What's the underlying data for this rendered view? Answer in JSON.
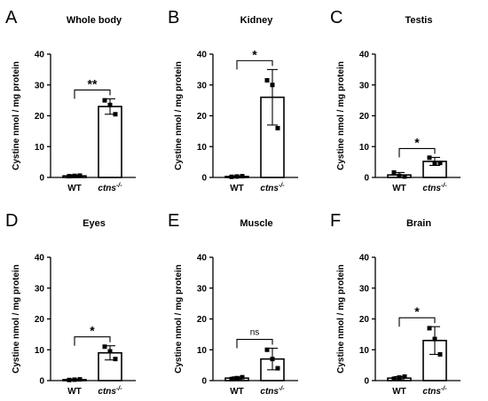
{
  "chart_data": [
    {
      "type": "bar",
      "panel": "A",
      "title": "Whole body",
      "ylabel": "Cystine nmol / mg protein",
      "ylim": [
        0,
        40
      ],
      "yticks": [
        "0",
        "10",
        "20",
        "30",
        "40"
      ],
      "categories": [
        "WT",
        "ctns"
      ],
      "category_superscripts": [
        "",
        "-/-"
      ],
      "values": [
        0.5,
        23.0
      ],
      "errors": [
        0.3,
        2.5
      ],
      "points": [
        [
          0.4,
          0.5,
          0.6
        ],
        [
          25.0,
          23.5,
          20.5
        ]
      ],
      "significance": "**"
    },
    {
      "type": "bar",
      "panel": "B",
      "title": "Kidney",
      "ylabel": "Cystine nmol / mg protein",
      "ylim": [
        0,
        40
      ],
      "yticks": [
        "0",
        "10",
        "20",
        "30",
        "40"
      ],
      "categories": [
        "WT",
        "ctns"
      ],
      "category_superscripts": [
        "",
        "-/-"
      ],
      "values": [
        0.3,
        26.0
      ],
      "errors": [
        0.2,
        9.0
      ],
      "points": [
        [
          0.2,
          0.3,
          0.4
        ],
        [
          31.5,
          30.0,
          16.0
        ]
      ],
      "significance": "*"
    },
    {
      "type": "bar",
      "panel": "C",
      "title": "Testis",
      "ylabel": "Cystine nmol / mg protein",
      "ylim": [
        0,
        40
      ],
      "yticks": [
        "0",
        "10",
        "20",
        "30",
        "40"
      ],
      "categories": [
        "WT",
        "ctns"
      ],
      "category_superscripts": [
        "",
        "-/-"
      ],
      "values": [
        0.8,
        5.2
      ],
      "errors": [
        0.8,
        1.3
      ],
      "points": [
        [
          1.6,
          0.5,
          0.3
        ],
        [
          6.4,
          4.6,
          4.7
        ]
      ],
      "significance": "*"
    },
    {
      "type": "bar",
      "panel": "D",
      "title": "Eyes",
      "ylabel": "Cystine nmol / mg protein",
      "ylim": [
        0,
        40
      ],
      "yticks": [
        "0",
        "10",
        "20",
        "30",
        "40"
      ],
      "categories": [
        "WT",
        "ctns"
      ],
      "category_superscripts": [
        "",
        "-/-"
      ],
      "values": [
        0.3,
        9.0
      ],
      "errors": [
        0.2,
        2.3
      ],
      "points": [
        [
          0.2,
          0.3,
          0.4
        ],
        [
          11.0,
          9.5,
          7.0
        ]
      ],
      "significance": "*"
    },
    {
      "type": "bar",
      "panel": "E",
      "title": "Muscle",
      "ylabel": "Cystine nmol / mg protein",
      "ylim": [
        0,
        40
      ],
      "yticks": [
        "0",
        "10",
        "20",
        "30",
        "40"
      ],
      "categories": [
        "WT",
        "ctns"
      ],
      "category_superscripts": [
        "",
        "-/-"
      ],
      "values": [
        0.8,
        7.0
      ],
      "errors": [
        0.4,
        3.5
      ],
      "points": [
        [
          0.5,
          0.8,
          1.1
        ],
        [
          10.0,
          7.0,
          4.0
        ]
      ],
      "significance": "ns"
    },
    {
      "type": "bar",
      "panel": "F",
      "title": "Brain",
      "ylabel": "Cystine nmol / mg protein",
      "ylim": [
        0,
        40
      ],
      "yticks": [
        "0",
        "10",
        "20",
        "30",
        "40"
      ],
      "categories": [
        "WT",
        "ctns"
      ],
      "category_superscripts": [
        "",
        "-/-"
      ],
      "values": [
        0.8,
        13.0
      ],
      "errors": [
        0.5,
        4.5
      ],
      "points": [
        [
          0.6,
          1.0,
          1.3
        ],
        [
          17.0,
          13.5,
          8.5
        ]
      ],
      "significance": "*"
    }
  ]
}
